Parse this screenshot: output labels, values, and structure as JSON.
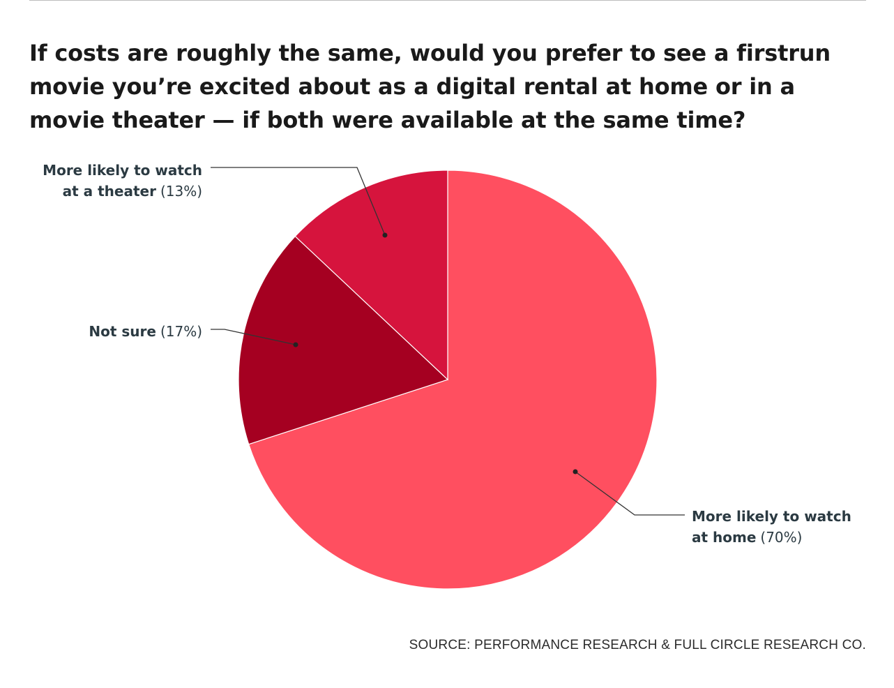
{
  "chart_data": {
    "type": "pie",
    "title": "If costs are roughly the same, would you prefer to see a firstrun movie you’re excited about as a digital rental at home or in a movie theater — if both were available at the same time?",
    "slices": [
      {
        "label_lines": [
          "More likely to watch",
          "at home"
        ],
        "pct_text": "(70%)",
        "value": 70,
        "color": "#ff4f60"
      },
      {
        "label_lines": [
          "Not sure"
        ],
        "pct_text": "(17%)",
        "value": 17,
        "color": "#a50021"
      },
      {
        "label_lines": [
          "More likely to watch",
          "at a theater"
        ],
        "pct_text": "(13%)",
        "value": 13,
        "color": "#d6143d"
      }
    ],
    "source": "SOURCE: PERFORMANCE RESEARCH & FULL CIRCLE RESEARCH CO."
  }
}
